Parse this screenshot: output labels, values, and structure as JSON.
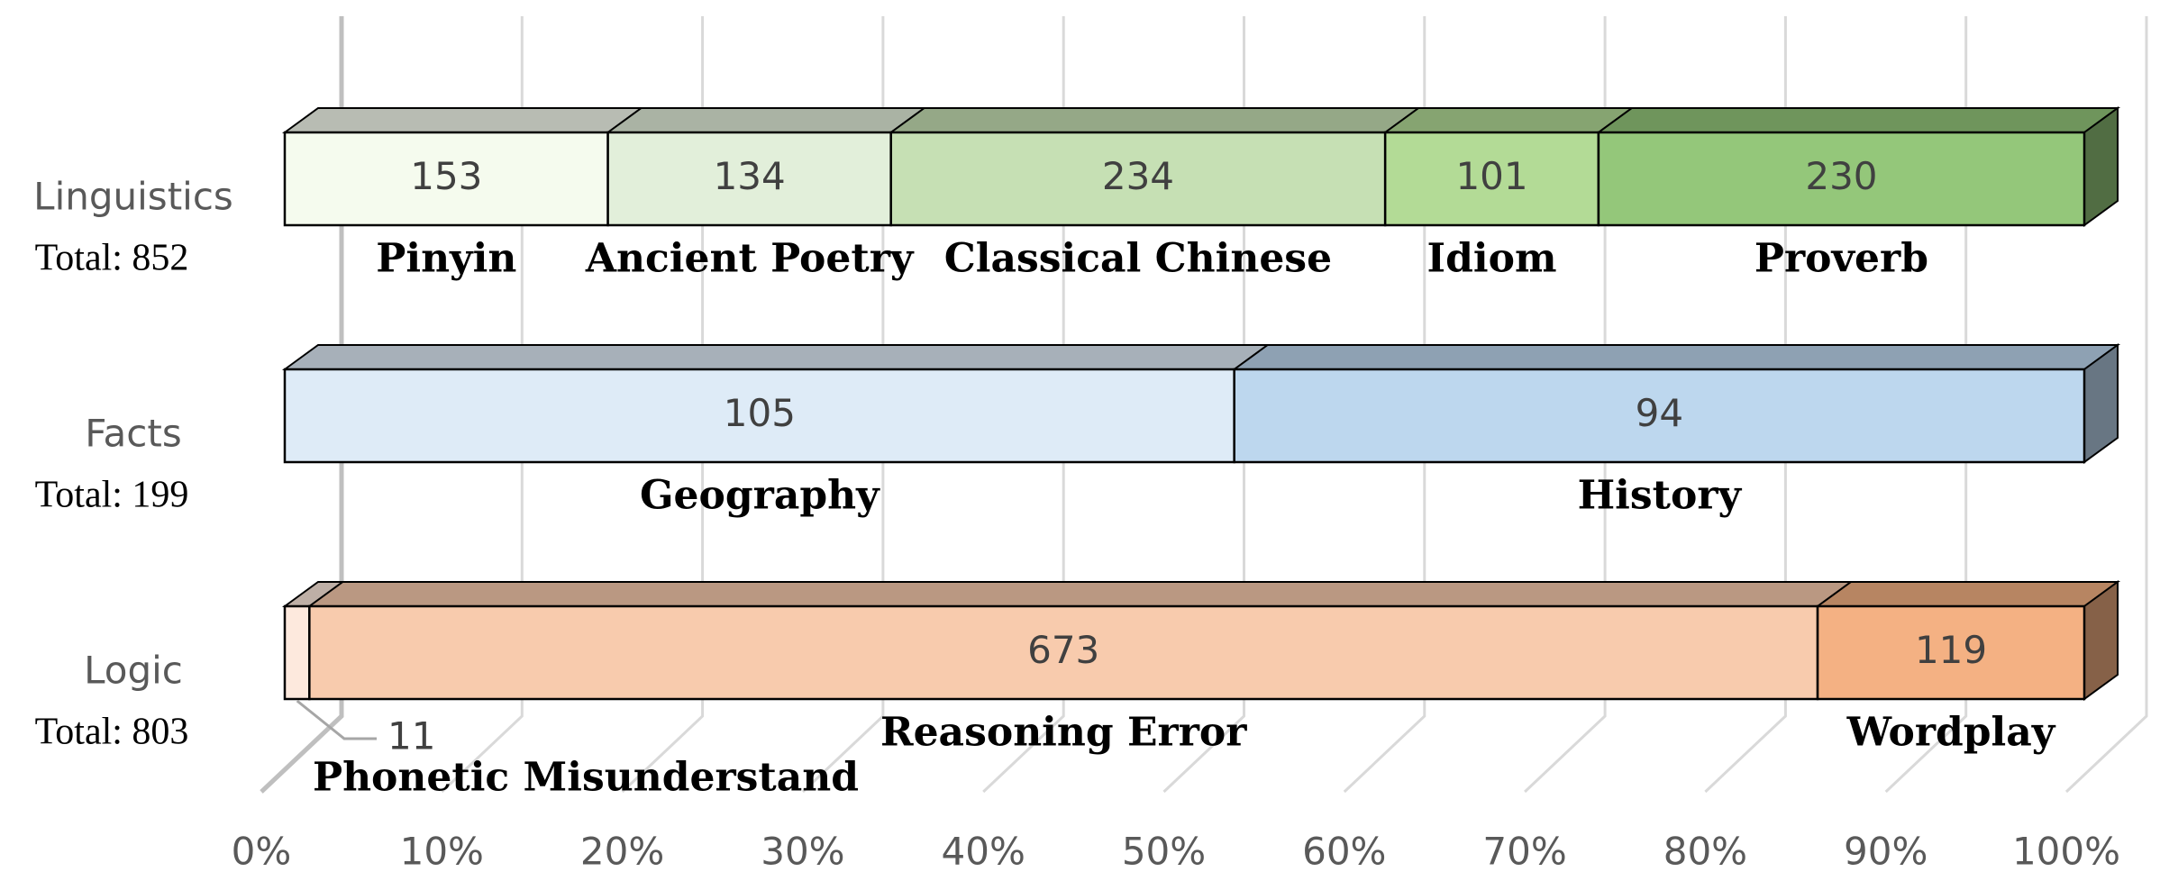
{
  "chart_data": {
    "type": "bar",
    "orientation": "horizontal",
    "stacking": "percent",
    "categories": [
      "Linguistics",
      "Facts",
      "Logic"
    ],
    "category_totals": [
      {
        "value": 852,
        "label": "Total: 852"
      },
      {
        "value": 199,
        "label": "Total: 199"
      },
      {
        "value": 803,
        "label": "Total: 803"
      }
    ],
    "groups": [
      {
        "segments": [
          {
            "name": "Pinyin",
            "value": 153,
            "color": "#f5fbee"
          },
          {
            "name": "Ancient Poetry",
            "value": 134,
            "color": "#e2efda"
          },
          {
            "name": "Classical Chinese",
            "value": 234,
            "color": "#c6e0b4"
          },
          {
            "name": "Idiom",
            "value": 101,
            "color": "#b3db96"
          },
          {
            "name": "Proverb",
            "value": 230,
            "color": "#94c77a"
          }
        ]
      },
      {
        "segments": [
          {
            "name": "Geography",
            "value": 105,
            "color": "#deebf7"
          },
          {
            "name": "History",
            "value": 94,
            "color": "#bdd7ee"
          }
        ]
      },
      {
        "segments": [
          {
            "name": "Phonetic Misunderstand",
            "value": 11,
            "color": "#fde9dd"
          },
          {
            "name": "Reasoning Error",
            "value": 673,
            "color": "#f8cbad"
          },
          {
            "name": "Wordplay",
            "value": 119,
            "color": "#f4b183"
          }
        ]
      }
    ],
    "xlim": [
      0,
      100
    ],
    "xticks": [
      {
        "value": 0,
        "label": "0%"
      },
      {
        "value": 10,
        "label": "10%"
      },
      {
        "value": 20,
        "label": "20%"
      },
      {
        "value": 30,
        "label": "30%"
      },
      {
        "value": 40,
        "label": "40%"
      },
      {
        "value": 50,
        "label": "50%"
      },
      {
        "value": 60,
        "label": "60%"
      },
      {
        "value": 70,
        "label": "70%"
      },
      {
        "value": 80,
        "label": "80%"
      },
      {
        "value": 90,
        "label": "90%"
      },
      {
        "value": 100,
        "label": "100%"
      }
    ],
    "grid": true
  }
}
